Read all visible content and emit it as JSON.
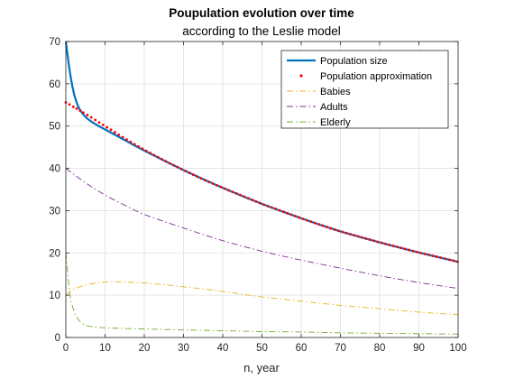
{
  "chart_data": {
    "type": "line",
    "title": "Poupulation evolution over time",
    "subtitle": "according to the Leslie model",
    "xlabel": "n, year",
    "ylabel": "",
    "xlim": [
      0,
      100
    ],
    "ylim": [
      0,
      70
    ],
    "xticks": [
      0,
      10,
      20,
      30,
      40,
      50,
      60,
      70,
      80,
      90,
      100
    ],
    "yticks": [
      0,
      10,
      20,
      30,
      40,
      50,
      60,
      70
    ],
    "grid": true,
    "legend_position": "top-right",
    "series": [
      {
        "name": "Population size",
        "style": "solid-thick",
        "color": "#0072BD",
        "x": [
          0,
          1,
          2,
          3,
          4,
          5,
          6,
          8,
          10,
          15,
          20,
          30,
          40,
          50,
          60,
          70,
          80,
          90,
          100
        ],
        "y": [
          70,
          63,
          58,
          55,
          53.3,
          52.2,
          51.4,
          50.2,
          49.2,
          46.7,
          44.2,
          39.6,
          35.4,
          31.6,
          28.2,
          25.1,
          22.5,
          20.1,
          17.9
        ]
      },
      {
        "name": "Population approximation",
        "style": "dotted",
        "color": "#FF0000",
        "x": [
          0,
          5,
          10,
          15,
          20,
          25,
          30,
          35,
          40,
          45,
          50,
          55,
          60,
          65,
          70,
          75,
          80,
          85,
          90,
          95,
          100
        ],
        "y": [
          55.6,
          52.9,
          50.0,
          47.1,
          44.4,
          41.9,
          39.6,
          37.4,
          35.4,
          33.5,
          31.6,
          29.9,
          28.2,
          26.6,
          25.1,
          23.8,
          22.5,
          21.3,
          20.1,
          19.0,
          17.9
        ]
      },
      {
        "name": "Babies",
        "style": "dashdot",
        "color": "#EDB120",
        "x": [
          0,
          1,
          2,
          3,
          5,
          8,
          10,
          13,
          15,
          20,
          30,
          40,
          50,
          60,
          70,
          80,
          90,
          100
        ],
        "y": [
          10,
          10.8,
          11.4,
          11.8,
          12.4,
          12.9,
          13.1,
          13.2,
          13.1,
          12.9,
          12.0,
          10.9,
          9.6,
          8.6,
          7.6,
          6.8,
          6.0,
          5.4
        ]
      },
      {
        "name": "Adults",
        "style": "dashdot",
        "color": "#7E2F8E",
        "x": [
          0,
          5,
          10,
          15,
          20,
          30,
          40,
          50,
          60,
          70,
          80,
          90,
          100
        ],
        "y": [
          40,
          36.6,
          33.7,
          31.3,
          29.1,
          25.9,
          22.9,
          20.4,
          18.3,
          16.4,
          14.6,
          13.0,
          11.6
        ]
      },
      {
        "name": "Elderly",
        "style": "dashdot",
        "color": "#77AC30",
        "x": [
          0,
          1,
          2,
          3,
          4,
          5,
          7,
          10,
          20,
          30,
          40,
          50,
          60,
          70,
          80,
          90,
          100
        ],
        "y": [
          20,
          10.5,
          6.5,
          4.5,
          3.5,
          2.9,
          2.5,
          2.3,
          2.0,
          1.8,
          1.6,
          1.4,
          1.3,
          1.1,
          1.0,
          0.9,
          0.8
        ]
      }
    ]
  }
}
